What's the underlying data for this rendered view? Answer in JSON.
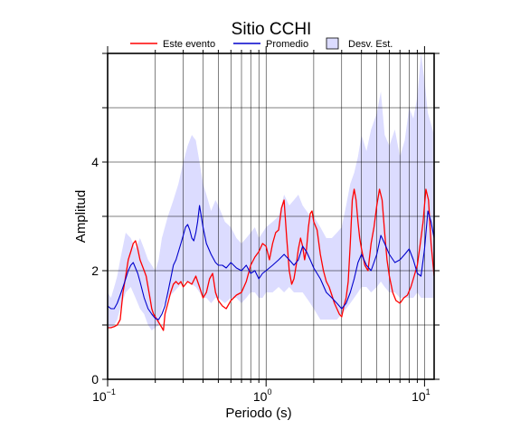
{
  "chart_data": {
    "type": "line",
    "title": "Sitio CCHI",
    "xlabel": "Periodo (s)",
    "ylabel": "Amplitud",
    "xscale": "log",
    "xlim": [
      0.1,
      11.5
    ],
    "ylim": [
      0,
      6
    ],
    "yticks": [
      {
        "value": 0,
        "label": "0"
      },
      {
        "value": 2,
        "label": "2"
      },
      {
        "value": 4,
        "label": "4"
      }
    ],
    "xticks": [
      {
        "value": 0.1,
        "base": "10",
        "exp": "−1"
      },
      {
        "value": 1,
        "base": "10",
        "exp": "0"
      },
      {
        "value": 10,
        "base": "10",
        "exp": "1"
      }
    ],
    "grid": true,
    "legend_position": "top",
    "legend": {
      "event": "Este evento",
      "mean": "Promedio",
      "std": "Desv. Est."
    },
    "colors": {
      "event": "#ff0000",
      "mean": "#0000cc",
      "band": "#dcdcff",
      "band_edge": "#000000"
    },
    "band": {
      "name": "Desv. Est.",
      "x": [
        0.1,
        0.105,
        0.11,
        0.115,
        0.12,
        0.13,
        0.14,
        0.15,
        0.16,
        0.17,
        0.18,
        0.19,
        0.2,
        0.21,
        0.22,
        0.24,
        0.26,
        0.28,
        0.3,
        0.32,
        0.34,
        0.36,
        0.38,
        0.4,
        0.42,
        0.45,
        0.48,
        0.5,
        0.55,
        0.6,
        0.65,
        0.7,
        0.75,
        0.8,
        0.85,
        0.9,
        0.95,
        1.0,
        1.1,
        1.2,
        1.3,
        1.4,
        1.5,
        1.6,
        1.7,
        1.8,
        1.9,
        2.0,
        2.2,
        2.4,
        2.6,
        2.8,
        3.0,
        3.2,
        3.4,
        3.6,
        3.8,
        4.0,
        4.3,
        4.6,
        5.0,
        5.3,
        5.6,
        6.0,
        6.5,
        7.0,
        7.5,
        8.0,
        8.5,
        9.0,
        9.5,
        10.0,
        10.5,
        11.0,
        11.5
      ],
      "upper": [
        1.6,
        1.5,
        1.7,
        1.9,
        2.2,
        2.7,
        2.6,
        2.4,
        2.6,
        2.4,
        2.2,
        2.1,
        2.0,
        2.2,
        2.6,
        3.0,
        3.3,
        3.6,
        4.0,
        4.3,
        4.5,
        4.4,
        4.0,
        3.6,
        3.4,
        3.1,
        3.3,
        3.2,
        2.9,
        2.8,
        2.6,
        2.5,
        2.6,
        2.7,
        2.8,
        2.6,
        2.7,
        2.8,
        2.9,
        3.0,
        3.4,
        3.2,
        3.3,
        3.4,
        3.2,
        3.1,
        3.0,
        3.0,
        2.8,
        2.6,
        2.6,
        2.7,
        2.8,
        3.2,
        3.6,
        3.8,
        4.1,
        4.5,
        4.2,
        4.6,
        4.9,
        5.3,
        4.5,
        4.3,
        4.6,
        4.1,
        4.4,
        5.0,
        4.8,
        5.2,
        6.0,
        5.5,
        4.9,
        4.7,
        4.5
      ],
      "lower": [
        0.95,
        0.95,
        1.0,
        1.1,
        1.3,
        1.6,
        1.7,
        1.5,
        1.3,
        1.2,
        1.0,
        0.9,
        0.95,
        1.0,
        1.3,
        1.5,
        1.6,
        1.7,
        1.8,
        1.8,
        1.75,
        1.7,
        1.6,
        1.5,
        1.5,
        1.4,
        1.5,
        1.5,
        1.4,
        1.5,
        1.5,
        1.4,
        1.5,
        1.6,
        1.6,
        1.5,
        1.5,
        1.6,
        1.6,
        1.7,
        1.6,
        1.7,
        1.6,
        1.6,
        1.6,
        1.5,
        1.4,
        1.3,
        1.1,
        1.1,
        1.1,
        1.1,
        1.2,
        1.3,
        1.4,
        1.5,
        1.6,
        1.7,
        1.7,
        1.6,
        1.7,
        1.8,
        1.7,
        1.6,
        1.6,
        1.5,
        1.5,
        1.5,
        1.5,
        1.6,
        1.5,
        1.5,
        1.5,
        1.5,
        1.5
      ]
    },
    "series": [
      {
        "name": "Este evento",
        "x": [
          0.1,
          0.105,
          0.11,
          0.115,
          0.12,
          0.125,
          0.13,
          0.135,
          0.14,
          0.145,
          0.15,
          0.155,
          0.16,
          0.165,
          0.17,
          0.175,
          0.18,
          0.185,
          0.19,
          0.195,
          0.2,
          0.205,
          0.21,
          0.215,
          0.22,
          0.225,
          0.23,
          0.24,
          0.25,
          0.26,
          0.27,
          0.28,
          0.29,
          0.3,
          0.32,
          0.34,
          0.36,
          0.38,
          0.4,
          0.42,
          0.44,
          0.46,
          0.48,
          0.5,
          0.53,
          0.56,
          0.6,
          0.65,
          0.7,
          0.75,
          0.8,
          0.85,
          0.9,
          0.95,
          1.0,
          1.05,
          1.1,
          1.15,
          1.2,
          1.25,
          1.3,
          1.35,
          1.4,
          1.45,
          1.5,
          1.55,
          1.6,
          1.65,
          1.7,
          1.75,
          1.8,
          1.85,
          1.9,
          1.95,
          2.0,
          2.1,
          2.2,
          2.3,
          2.4,
          2.5,
          2.6,
          2.7,
          2.8,
          2.9,
          3.0,
          3.1,
          3.2,
          3.3,
          3.4,
          3.5,
          3.6,
          3.7,
          3.8,
          3.9,
          4.0,
          4.2,
          4.4,
          4.6,
          4.8,
          5.0,
          5.2,
          5.4,
          5.6,
          5.8,
          6.0,
          6.3,
          6.6,
          7.0,
          7.4,
          7.8,
          8.2,
          8.6,
          9.0,
          9.4,
          9.8,
          10.2,
          10.6,
          11.0,
          11.5
        ],
        "values": [
          0.95,
          0.95,
          0.97,
          1.0,
          1.1,
          1.6,
          1.9,
          2.2,
          2.35,
          2.5,
          2.55,
          2.4,
          2.2,
          2.1,
          2.0,
          1.9,
          1.7,
          1.5,
          1.3,
          1.2,
          1.15,
          1.1,
          1.05,
          1.0,
          0.95,
          0.9,
          1.2,
          1.4,
          1.6,
          1.75,
          1.8,
          1.75,
          1.8,
          1.7,
          1.8,
          1.75,
          1.9,
          1.7,
          1.5,
          1.6,
          1.85,
          1.95,
          1.6,
          1.45,
          1.35,
          1.3,
          1.45,
          1.55,
          1.6,
          1.8,
          2.1,
          2.25,
          2.35,
          2.5,
          2.45,
          2.2,
          2.5,
          2.7,
          2.75,
          3.15,
          3.3,
          2.6,
          2.0,
          1.75,
          1.85,
          2.1,
          2.4,
          2.6,
          2.45,
          2.2,
          2.4,
          2.8,
          3.05,
          3.1,
          2.9,
          2.75,
          2.3,
          2.0,
          1.8,
          1.7,
          1.55,
          1.4,
          1.3,
          1.2,
          1.15,
          1.35,
          1.5,
          1.8,
          2.5,
          3.3,
          3.5,
          3.3,
          2.9,
          2.6,
          2.4,
          2.1,
          2.0,
          2.5,
          2.8,
          3.2,
          3.5,
          3.3,
          2.7,
          2.2,
          1.9,
          1.6,
          1.45,
          1.4,
          1.5,
          1.55,
          1.7,
          1.9,
          2.1,
          2.5,
          2.9,
          3.5,
          3.3,
          2.5,
          1.9
        ]
      },
      {
        "name": "Promedio",
        "x": [
          0.1,
          0.105,
          0.11,
          0.115,
          0.12,
          0.125,
          0.13,
          0.135,
          0.14,
          0.145,
          0.15,
          0.155,
          0.16,
          0.17,
          0.18,
          0.19,
          0.2,
          0.21,
          0.22,
          0.23,
          0.24,
          0.25,
          0.26,
          0.27,
          0.28,
          0.29,
          0.3,
          0.31,
          0.32,
          0.33,
          0.34,
          0.35,
          0.36,
          0.37,
          0.38,
          0.4,
          0.42,
          0.45,
          0.48,
          0.5,
          0.53,
          0.56,
          0.6,
          0.65,
          0.7,
          0.75,
          0.8,
          0.85,
          0.9,
          0.95,
          1.0,
          1.1,
          1.2,
          1.3,
          1.4,
          1.5,
          1.6,
          1.7,
          1.8,
          1.9,
          2.0,
          2.2,
          2.4,
          2.6,
          2.8,
          3.0,
          3.2,
          3.4,
          3.6,
          3.8,
          4.0,
          4.3,
          4.6,
          5.0,
          5.3,
          5.6,
          6.0,
          6.5,
          7.0,
          7.5,
          8.0,
          8.5,
          9.0,
          9.5,
          10.0,
          10.5,
          11.0,
          11.5
        ],
        "values": [
          1.35,
          1.3,
          1.3,
          1.4,
          1.55,
          1.7,
          1.85,
          2.0,
          2.1,
          2.15,
          2.05,
          1.95,
          1.8,
          1.5,
          1.3,
          1.2,
          1.12,
          1.1,
          1.2,
          1.35,
          1.6,
          1.85,
          2.1,
          2.2,
          2.35,
          2.5,
          2.65,
          2.8,
          2.85,
          2.75,
          2.6,
          2.55,
          2.7,
          2.9,
          3.2,
          2.8,
          2.5,
          2.3,
          2.15,
          2.1,
          2.1,
          2.05,
          2.15,
          2.05,
          2.0,
          2.1,
          1.95,
          2.0,
          1.85,
          1.95,
          2.0,
          2.1,
          2.2,
          2.3,
          2.2,
          2.1,
          2.2,
          2.45,
          2.35,
          2.2,
          2.05,
          1.85,
          1.6,
          1.5,
          1.4,
          1.3,
          1.4,
          1.6,
          1.85,
          2.15,
          2.3,
          2.1,
          2.0,
          2.3,
          2.65,
          2.5,
          2.3,
          2.15,
          2.2,
          2.3,
          2.4,
          2.2,
          1.95,
          1.9,
          2.4,
          3.1,
          2.9,
          2.6
        ]
      }
    ]
  }
}
